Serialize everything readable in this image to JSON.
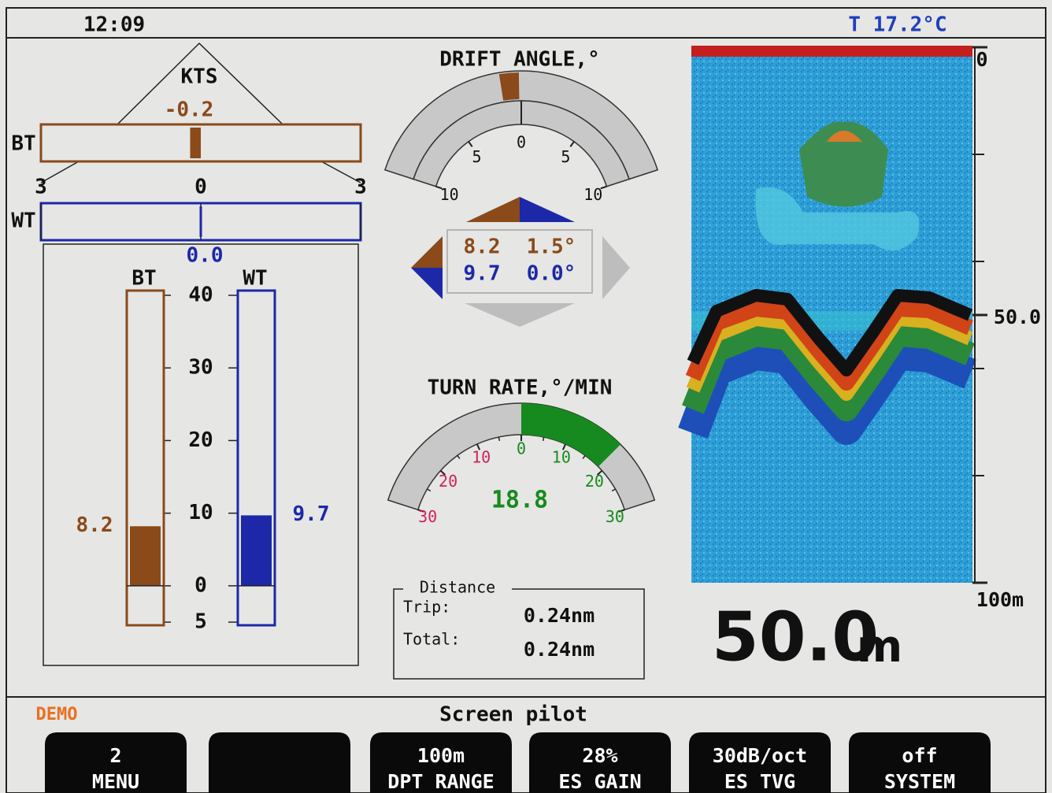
{
  "header": {
    "time": "12:09",
    "temperature": "T 17.2°C"
  },
  "speed_log": {
    "unit": "KTS",
    "transverse": {
      "xlim": [
        -3,
        3
      ],
      "xticks": [
        {
          "value": -3,
          "label": "3"
        },
        0,
        3
      ],
      "bt_label": "BT",
      "bt_value": -0.2,
      "wt_label": "WT",
      "wt_value": {
        "value": 0,
        "label": "0.0"
      }
    },
    "longitudinal": {
      "ylim": [
        -5,
        40
      ],
      "yticks": [
        {
          "value": -5,
          "label": "5"
        },
        0,
        10,
        20,
        30,
        40
      ],
      "series": [
        {
          "name": "BT",
          "color": "#8a4a1a",
          "values": [
            8.2
          ]
        },
        {
          "name": "WT",
          "color": "#1c28a8",
          "values": [
            9.7
          ]
        }
      ]
    }
  },
  "drift_angle": {
    "title": "DRIFT ANGLE,°",
    "xlim": [
      -10,
      10
    ],
    "xticks": [
      {
        "value": -10,
        "label": "10"
      },
      {
        "value": -5,
        "label": "5"
      },
      0,
      5,
      10
    ],
    "readout": [
      {
        "angle": "1.5°"
      },
      {
        "angle": "0.0°"
      }
    ]
  },
  "turn_rate": {
    "title": "TURN RATE,°/MIN",
    "xlim": [
      -30,
      30
    ],
    "xticks": [
      {
        "value": -30,
        "label": "30"
      },
      {
        "value": -20,
        "label": "20"
      },
      {
        "value": -10,
        "label": "10"
      },
      0,
      10,
      20,
      30
    ],
    "value": 18.8
  },
  "distance": {
    "title": "Distance",
    "rows": [
      [
        "Trip:",
        "0.24nm"
      ],
      [
        "Total:",
        "0.24nm"
      ]
    ]
  },
  "echogram": {
    "ylim": [
      0,
      100
    ],
    "depth_labels": [
      {
        "value": 0,
        "label": "0"
      },
      {
        "value": 50,
        "label": "50.0"
      },
      {
        "value": 100,
        "label": "100m"
      }
    ],
    "depth": "50.0",
    "depth_unit": "m"
  },
  "footer": {
    "mode": "DEMO",
    "screen": "Screen pilot",
    "softkeys": [
      {
        "top": "2",
        "bottom": "MENU"
      },
      {
        "top": "100m",
        "bottom": "DPT RANGE"
      },
      {
        "top": "28%",
        "bottom": "ES GAIN"
      },
      {
        "top": "30dB/oct",
        "bottom": "ES TVG"
      },
      {
        "top": "off",
        "bottom": "SYSTEM"
      }
    ]
  }
}
